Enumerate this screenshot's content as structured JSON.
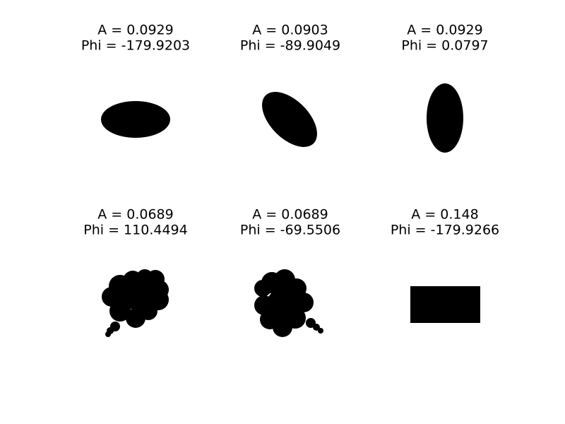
{
  "panels": [
    {
      "title": [
        "A = 0.0929",
        "Phi = -179.9203"
      ]
    },
    {
      "title": [
        "A = 0.0903",
        "Phi = -89.9049"
      ]
    },
    {
      "title": [
        "A = 0.0929",
        "Phi = 0.0797"
      ]
    },
    {
      "title": [
        "A = 0.0689",
        "Phi = 110.4494"
      ]
    },
    {
      "title": [
        "A = 0.0689",
        "Phi = -69.5506"
      ]
    },
    {
      "title": [
        "A = 0.148",
        "Phi = -179.9266"
      ]
    }
  ]
}
